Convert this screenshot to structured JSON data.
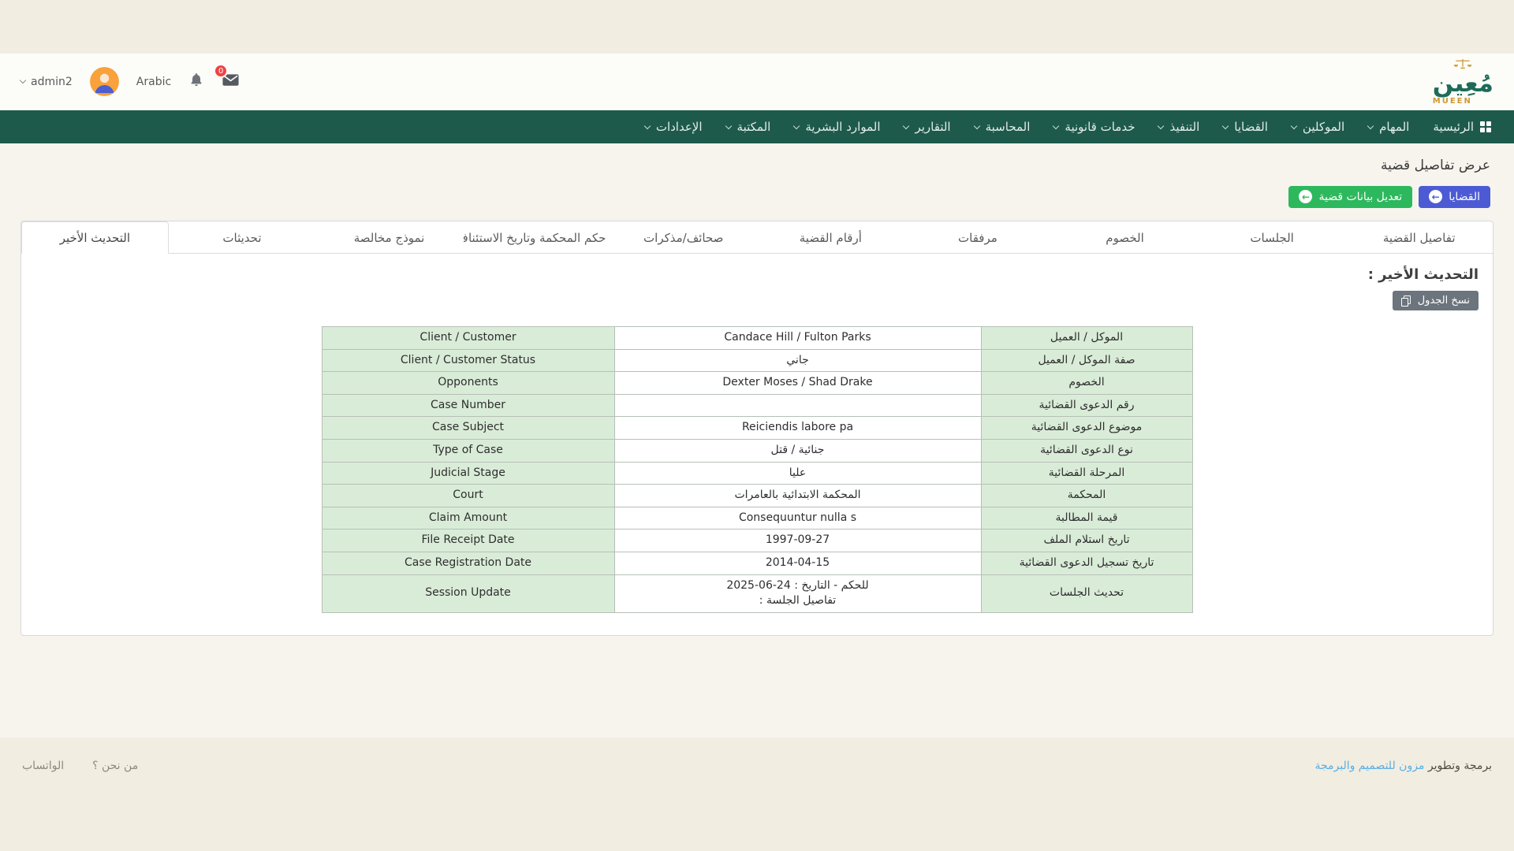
{
  "topbar": {
    "username": "admin2",
    "language": "Arabic",
    "badge_count": "0"
  },
  "logo": {
    "arabic": "مُعِين",
    "latin": "MUEEN"
  },
  "nav": {
    "items": [
      {
        "id": "home",
        "label": "الرئيسية",
        "icon": "grid",
        "chevron": false
      },
      {
        "id": "tasks",
        "label": "المهام",
        "chevron": true
      },
      {
        "id": "clients",
        "label": "الموكلين",
        "chevron": true
      },
      {
        "id": "cases",
        "label": "القضايا",
        "chevron": true
      },
      {
        "id": "execution",
        "label": "التنفيذ",
        "chevron": true
      },
      {
        "id": "legal-services",
        "label": "خدمات قانونية",
        "chevron": true
      },
      {
        "id": "accounting",
        "label": "المحاسبة",
        "chevron": true
      },
      {
        "id": "reports",
        "label": "التقارير",
        "chevron": true
      },
      {
        "id": "hr",
        "label": "الموارد البشرية",
        "chevron": true
      },
      {
        "id": "library",
        "label": "المكتبة",
        "chevron": true
      },
      {
        "id": "settings",
        "label": "الإعدادات",
        "chevron": true
      }
    ]
  },
  "page": {
    "title": "عرض تفاصيل قضية"
  },
  "actions": {
    "cases": "القضايا",
    "edit": "تعديل بيانات قضية"
  },
  "tabs": [
    {
      "id": "case-details",
      "label": "تفاصيل القضية",
      "active": false
    },
    {
      "id": "sessions",
      "label": "الجلسات",
      "active": false
    },
    {
      "id": "opponents",
      "label": "الخصوم",
      "active": false
    },
    {
      "id": "attachments",
      "label": "مرفقات",
      "active": false
    },
    {
      "id": "case-numbers",
      "label": "أرقام القضية",
      "active": false
    },
    {
      "id": "memos",
      "label": "صحائف/مذكرات",
      "active": false
    },
    {
      "id": "judgment",
      "label": "حكم المحكمة وتاريخ الاستئناف",
      "active": false
    },
    {
      "id": "release-form",
      "label": "نموذج مخالصة",
      "active": false
    },
    {
      "id": "updates",
      "label": "تحديثات",
      "active": false
    },
    {
      "id": "latest-update",
      "label": "التحديث الأخير",
      "active": true
    }
  ],
  "panel": {
    "heading": "التحديث الأخير :",
    "copy_button": "نسخ الجدول"
  },
  "case_table": {
    "rows": [
      {
        "ar": "الموكل / العميل",
        "value": "Candace Hill / Fulton Parks",
        "en": "Client / Customer"
      },
      {
        "ar": "صفة الموكل / العميل",
        "value": "جاني",
        "en": "Client / Customer Status"
      },
      {
        "ar": "الخصوم",
        "value": "Dexter Moses / Shad Drake",
        "en": "Opponents"
      },
      {
        "ar": "رقم الدعوى القضائية",
        "value": "",
        "en": "Case Number"
      },
      {
        "ar": "موضوع الدعوى القضائية",
        "value": "Reiciendis labore pa",
        "en": "Case Subject"
      },
      {
        "ar": "نوع الدعوى القضائية",
        "value": "جنائية / قتل",
        "en": "Type of Case"
      },
      {
        "ar": "المرحلة القضائية",
        "value": "عليا",
        "en": "Judicial Stage"
      },
      {
        "ar": "المحكمة",
        "value": "المحكمة الابتدائية بالعامرات",
        "en": "Court"
      },
      {
        "ar": "قيمة المطالبة",
        "value": "Consequuntur nulla s",
        "en": "Claim Amount"
      },
      {
        "ar": "تاريخ استلام الملف",
        "value": "1997-09-27",
        "en": "File Receipt Date"
      },
      {
        "ar": "تاريخ تسجيل الدعوى القضائية",
        "value": "2014-04-15",
        "en": "Case Registration Date"
      },
      {
        "ar": "تحديث الجلسات",
        "value": "للحكم - التاريخ : 24-06-2025",
        "value_line2": "تفاصيل الجلسة :",
        "en": "Session Update"
      }
    ]
  },
  "footer": {
    "credit_prefix": "برمجة وتطوير",
    "credit_link": "مزون للتصميم والبرمجة",
    "links": [
      {
        "id": "about",
        "label": "من نحن ؟"
      },
      {
        "id": "whatsapp",
        "label": "الواتساب"
      }
    ]
  },
  "colors": {
    "nav_green": "#1d5a4c",
    "button_blue": "#4c5bd4",
    "button_green": "#2db85d",
    "copy_gray": "#6c757d",
    "cell_green": "#d9ecd8",
    "link_blue": "#58aee5",
    "badge_red": "#ef4444",
    "logo_teal": "#1d6b59",
    "logo_gold": "#cf9a33",
    "beige": "#f2ede1"
  }
}
